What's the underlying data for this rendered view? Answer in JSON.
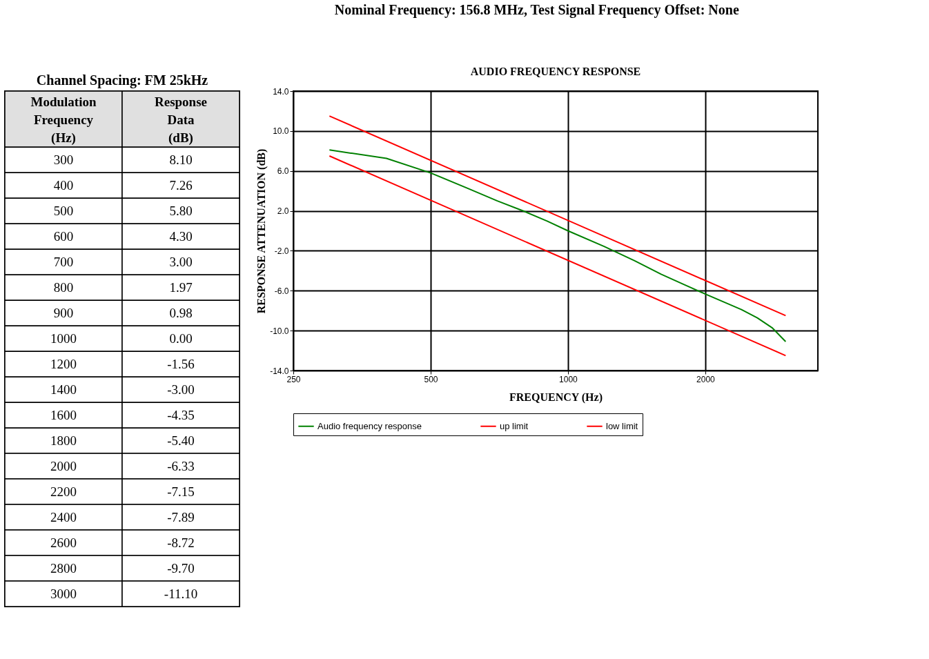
{
  "chart_data": {
    "type": "line",
    "title": "Nominal Frequency: 156.8 MHz, Test Signal Frequency Offset: None",
    "subtitle": "AUDIO FREQUENCY RESPONSE",
    "xlabel": "FREQUENCY (Hz)",
    "ylabel": "RESPONSE ATTENUATION (dB)",
    "annotations": [
      "Channel Spacing: FM 25kHz",
      "Modulation Frequency (Hz)",
      "Response Data (dB)",
      "300",
      "8.10",
      "400",
      "7.26",
      "500",
      "5.80",
      "600",
      "4.30",
      "700",
      "3.00",
      "800",
      "1.97",
      "900",
      "0.98",
      "1000",
      "0.00",
      "1200",
      "-1.56",
      "1400",
      "-3.00",
      "1600",
      "-4.35",
      "1800",
      "-5.40",
      "2000",
      "-6.33",
      "2200",
      "-7.15",
      "2400",
      "-7.89",
      "2600",
      "-8.72",
      "2800",
      "-9.70",
      "3000",
      "-11.10"
    ],
    "log": "x",
    "xlim": [
      250,
      3530
    ],
    "xticks": [
      250,
      500,
      1000,
      2000
    ],
    "ylim": [
      -14,
      14
    ],
    "yticks": [
      {
        "value": -14,
        "label": "-14.0"
      },
      {
        "value": -10,
        "label": "-10.0"
      },
      {
        "value": -6,
        "label": "-6.0"
      },
      {
        "value": -2,
        "label": "-2.0"
      },
      {
        "value": 2,
        "label": "2.0"
      },
      {
        "value": 6,
        "label": "6.0"
      },
      {
        "value": 10,
        "label": "10.0"
      },
      {
        "value": 14,
        "label": "14.0"
      }
    ],
    "grid": true,
    "legend": "bottom",
    "marker": "none",
    "line_style": "solid",
    "series": [
      {
        "name": "Audio frequency response",
        "color": "#008000",
        "x": [
          300,
          400,
          500,
          600,
          700,
          800,
          900,
          1000,
          1200,
          1400,
          1600,
          1800,
          2000,
          2200,
          2400,
          2600,
          2800,
          3000
        ],
        "values": [
          8.1,
          7.26,
          5.8,
          4.3,
          3.0,
          1.97,
          0.98,
          0.0,
          -1.56,
          -3.0,
          -4.35,
          -5.4,
          -6.33,
          -7.15,
          -7.89,
          -8.72,
          -9.7,
          -11.1
        ]
      },
      {
        "name": "up limit",
        "color": "#ff0000",
        "x": [
          300,
          3000
        ],
        "values": [
          11.5,
          -8.5
        ]
      },
      {
        "name": "low limit",
        "color": "#ff0000",
        "x": [
          300,
          3000
        ],
        "values": [
          7.5,
          -12.5
        ]
      }
    ]
  }
}
